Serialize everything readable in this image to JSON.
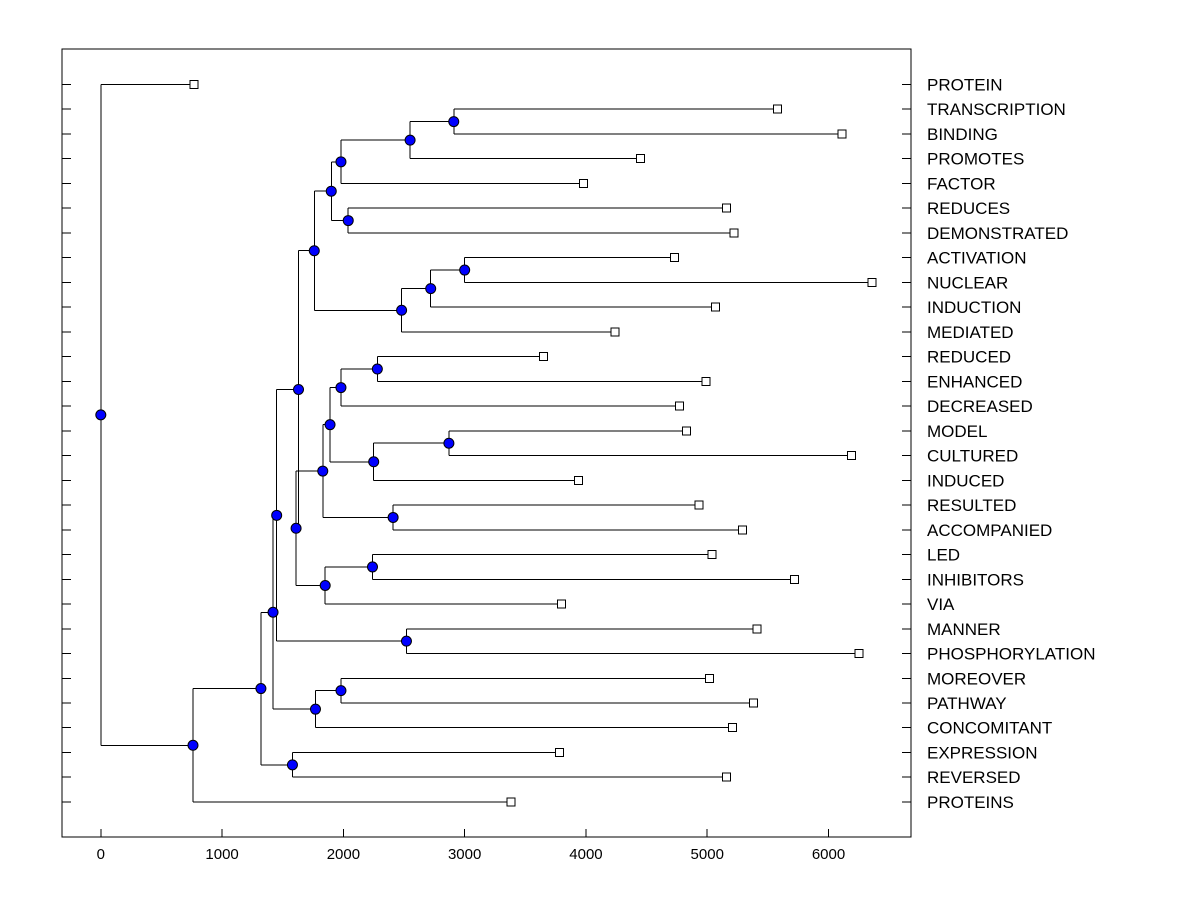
{
  "chart_data": {
    "type": "dendrogram",
    "x_axis": {
      "range": [
        -320,
        6680
      ],
      "ticks": [
        0,
        1000,
        2000,
        3000,
        4000,
        5000,
        6000
      ],
      "tick_labels": [
        "0",
        "1000",
        "2000",
        "3000",
        "4000",
        "5000",
        "6000"
      ]
    },
    "node_color": "#0000ff",
    "leaf_color": "#ffffff",
    "leaves": [
      {
        "label": "PROTEIN",
        "x": 770
      },
      {
        "label": "TRANSCRIPTION",
        "x": 5580
      },
      {
        "label": "BINDING",
        "x": 6110
      },
      {
        "label": "PROMOTES",
        "x": 4450
      },
      {
        "label": "FACTOR",
        "x": 3980
      },
      {
        "label": "REDUCES",
        "x": 5160
      },
      {
        "label": "DEMONSTRATED",
        "x": 5220
      },
      {
        "label": "ACTIVATION",
        "x": 4730
      },
      {
        "label": "NUCLEAR",
        "x": 6360
      },
      {
        "label": "INDUCTION",
        "x": 5070
      },
      {
        "label": "MEDIATED",
        "x": 4240
      },
      {
        "label": "REDUCED",
        "x": 3650
      },
      {
        "label": "ENHANCED",
        "x": 4990
      },
      {
        "label": "DECREASED",
        "x": 4770
      },
      {
        "label": "MODEL",
        "x": 4830
      },
      {
        "label": "CULTURED",
        "x": 6190
      },
      {
        "label": "INDUCED",
        "x": 3940
      },
      {
        "label": "RESULTED",
        "x": 4930
      },
      {
        "label": "ACCOMPANIED",
        "x": 5290
      },
      {
        "label": "LED",
        "x": 5040
      },
      {
        "label": "INHIBITORS",
        "x": 5720
      },
      {
        "label": "VIA",
        "x": 3800
      },
      {
        "label": "MANNER",
        "x": 5410
      },
      {
        "label": "PHOSPHORYLATION",
        "x": 6250
      },
      {
        "label": "MOREOVER",
        "x": 5020
      },
      {
        "label": "PATHWAY",
        "x": 5380
      },
      {
        "label": "CONCOMITANT",
        "x": 5210
      },
      {
        "label": "EXPRESSION",
        "x": 3780
      },
      {
        "label": "REVERSED",
        "x": 5160
      },
      {
        "label": "PROTEINS",
        "x": 3380
      }
    ],
    "merges": [
      {
        "id": "a",
        "x": 2910,
        "children": [
          "L1",
          "L2"
        ]
      },
      {
        "id": "b",
        "x": 2550,
        "children": [
          "a",
          "L3"
        ]
      },
      {
        "id": "c",
        "x": 1980,
        "children": [
          "b",
          "L4"
        ]
      },
      {
        "id": "d",
        "x": 2040,
        "children": [
          "L5",
          "L6"
        ]
      },
      {
        "id": "e",
        "x": 1900,
        "children": [
          "c",
          "d"
        ]
      },
      {
        "id": "f",
        "x": 3000,
        "children": [
          "L7",
          "L8"
        ]
      },
      {
        "id": "g",
        "x": 2720,
        "children": [
          "f",
          "L9"
        ]
      },
      {
        "id": "h",
        "x": 2480,
        "children": [
          "g",
          "L10"
        ]
      },
      {
        "id": "i",
        "x": 1760,
        "children": [
          "e",
          "h"
        ]
      },
      {
        "id": "j",
        "x": 2280,
        "children": [
          "L11",
          "L12"
        ]
      },
      {
        "id": "k",
        "x": 1980,
        "children": [
          "j",
          "L13"
        ]
      },
      {
        "id": "l",
        "x": 2870,
        "children": [
          "L14",
          "L15"
        ]
      },
      {
        "id": "m",
        "x": 2250,
        "children": [
          "l",
          "L16"
        ]
      },
      {
        "id": "n",
        "x": 1890,
        "children": [
          "k",
          "m"
        ]
      },
      {
        "id": "o",
        "x": 2410,
        "children": [
          "L17",
          "L18"
        ]
      },
      {
        "id": "p",
        "x": 1830,
        "children": [
          "n",
          "o"
        ]
      },
      {
        "id": "q",
        "x": 2240,
        "children": [
          "L19",
          "L20"
        ]
      },
      {
        "id": "r",
        "x": 1850,
        "children": [
          "q",
          "L21"
        ]
      },
      {
        "id": "s",
        "x": 1610,
        "children": [
          "p",
          "r"
        ]
      },
      {
        "id": "t",
        "x": 1630,
        "children": [
          "i",
          "s"
        ]
      },
      {
        "id": "u",
        "x": 2520,
        "children": [
          "L22",
          "L23"
        ]
      },
      {
        "id": "v",
        "x": 1450,
        "children": [
          "t",
          "u"
        ]
      },
      {
        "id": "w",
        "x": 1980,
        "children": [
          "L24",
          "L25"
        ]
      },
      {
        "id": "x",
        "x": 1770,
        "children": [
          "w",
          "L26"
        ]
      },
      {
        "id": "y",
        "x": 1420,
        "children": [
          "v",
          "x"
        ]
      },
      {
        "id": "z",
        "x": 1580,
        "children": [
          "L27",
          "L28"
        ]
      },
      {
        "id": "aa",
        "x": 1320,
        "children": [
          "y",
          "z"
        ]
      },
      {
        "id": "bb",
        "x": 760,
        "children": [
          "aa",
          "L29"
        ]
      },
      {
        "id": "root",
        "x": 0,
        "children": [
          "L0",
          "bb"
        ]
      }
    ]
  }
}
